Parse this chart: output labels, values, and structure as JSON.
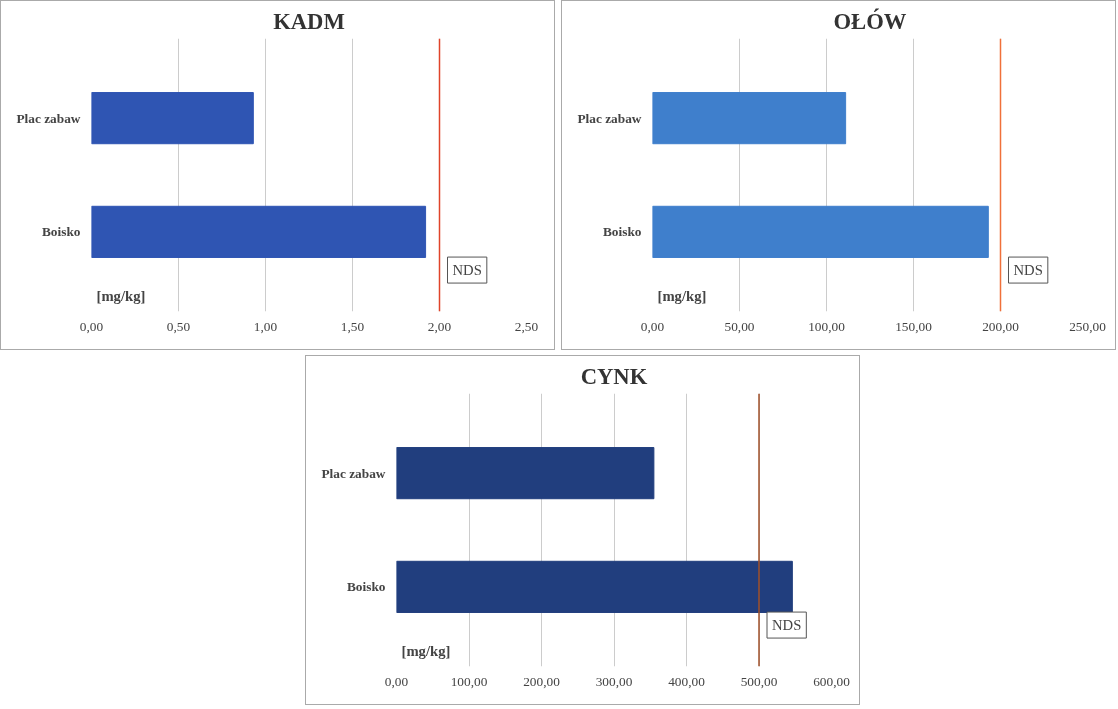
{
  "chart_data": [
    {
      "type": "bar",
      "orientation": "horizontal",
      "title": "KADM",
      "categories": [
        "Plac zabaw",
        "Boisko"
      ],
      "values": [
        0.93,
        1.92
      ],
      "color": "#2f55b3",
      "xlim": [
        0,
        2.5
      ],
      "xticks": [
        {
          "value": 0,
          "label": "0,00"
        },
        {
          "value": 0.5,
          "label": "0,50"
        },
        {
          "value": 1,
          "label": "1,00"
        },
        {
          "value": 1.5,
          "label": "1,50"
        },
        {
          "value": 2,
          "label": "2,00"
        },
        {
          "value": 2.5,
          "label": "2,50"
        }
      ],
      "grid": "x",
      "ref_lines": [
        {
          "axis": "x",
          "value": 2,
          "label": "NDS",
          "color": "#e0442a"
        }
      ],
      "annotations": [
        "[mg/kg]"
      ]
    },
    {
      "type": "bar",
      "orientation": "horizontal",
      "title": "OŁÓW",
      "categories": [
        "Plac zabaw",
        "Boisko"
      ],
      "values": [
        111,
        193
      ],
      "color": "#3f7fcc",
      "xlim": [
        0,
        250
      ],
      "xticks": [
        {
          "value": 0,
          "label": "0,00"
        },
        {
          "value": 50,
          "label": "50,00"
        },
        {
          "value": 100,
          "label": "100,00"
        },
        {
          "value": 150,
          "label": "150,00"
        },
        {
          "value": 200,
          "label": "200,00"
        },
        {
          "value": 250,
          "label": "250,00"
        }
      ],
      "grid": "x",
      "ref_lines": [
        {
          "axis": "x",
          "value": 200,
          "label": "NDS",
          "color": "#f0703a"
        }
      ],
      "annotations": [
        "[mg/kg]"
      ]
    },
    {
      "type": "bar",
      "orientation": "horizontal",
      "title": "CYNK",
      "categories": [
        "Plac zabaw",
        "Boisko"
      ],
      "values": [
        355,
        546
      ],
      "color": "#213e7e",
      "xlim": [
        0,
        600
      ],
      "xticks": [
        {
          "value": 0,
          "label": "0,00"
        },
        {
          "value": 100,
          "label": "100,00"
        },
        {
          "value": 200,
          "label": "200,00"
        },
        {
          "value": 300,
          "label": "300,00"
        },
        {
          "value": 400,
          "label": "400,00"
        },
        {
          "value": 500,
          "label": "500,00"
        },
        {
          "value": 600,
          "label": "600,00"
        }
      ],
      "grid": "x",
      "ref_lines": [
        {
          "axis": "x",
          "value": 500,
          "label": "NDS",
          "color": "#a0502a"
        }
      ],
      "annotations": [
        "[mg/kg]"
      ]
    }
  ]
}
